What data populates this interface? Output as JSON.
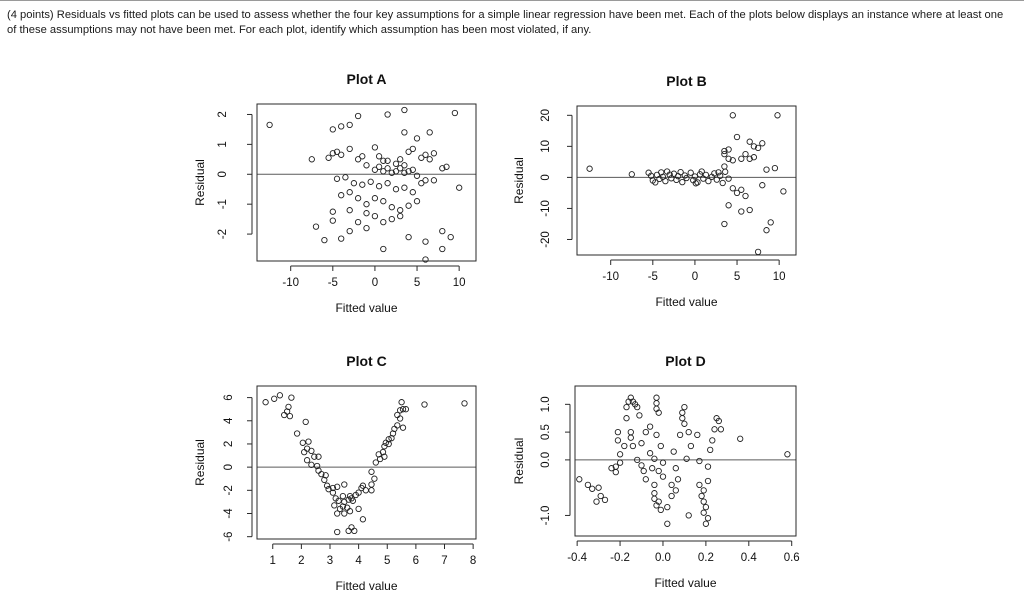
{
  "question": {
    "line1": "(4 points) Residuals vs fitted plots can be used to assess whether the four key assumptions for a simple linear regression have been met. Each of the plots below displays an instance where at least one",
    "line2": "of these assumptions may not have been met. For each plot, identify which assumption has been most violated, if any."
  },
  "chart_data": [
    {
      "type": "scatter",
      "title": "Plot A",
      "xlabel": "Fitted value",
      "ylabel": "Residual",
      "xlim": [
        -14,
        12
      ],
      "ylim": [
        -2.9,
        2.35
      ],
      "xticks": [
        -10,
        -5,
        0,
        5,
        10
      ],
      "xtick_labels": [
        "-10",
        "-5",
        "0",
        "5",
        "10"
      ],
      "yticks": [
        -2,
        -1,
        0,
        1,
        2
      ],
      "ytick_labels": [
        "-2",
        "-1",
        "0",
        "1",
        "2"
      ],
      "hline": 0,
      "points": [
        [
          -12.5,
          1.65
        ],
        [
          -7.5,
          0.5
        ],
        [
          -5,
          1.5
        ],
        [
          -4,
          1.6
        ],
        [
          -3,
          1.65
        ],
        [
          -2,
          1.95
        ],
        [
          0,
          0.9
        ],
        [
          1.5,
          2
        ],
        [
          3.5,
          1.4
        ],
        [
          5,
          1.2
        ],
        [
          6.5,
          1.4
        ],
        [
          3.5,
          2.15
        ],
        [
          9.5,
          2.05
        ],
        [
          -5,
          0.7
        ],
        [
          -5.5,
          0.55
        ],
        [
          -4,
          0.65
        ],
        [
          -3,
          0.85
        ],
        [
          -2,
          0.5
        ],
        [
          -1.5,
          0.6
        ],
        [
          0.5,
          0.6
        ],
        [
          1,
          0.45
        ],
        [
          1.5,
          0.45
        ],
        [
          2.5,
          0.35
        ],
        [
          3,
          0.5
        ],
        [
          3.5,
          0.3
        ],
        [
          4,
          0.75
        ],
        [
          4.5,
          0.85
        ],
        [
          5.5,
          0.55
        ],
        [
          6,
          0.65
        ],
        [
          6.5,
          0.5
        ],
        [
          7,
          0.7
        ],
        [
          8,
          0.2
        ],
        [
          8.5,
          0.25
        ],
        [
          -1,
          0.3
        ],
        [
          0,
          0.15
        ],
        [
          0.5,
          0.25
        ],
        [
          1,
          0.1
        ],
        [
          1.5,
          0.2
        ],
        [
          2,
          0.05
        ],
        [
          2.5,
          0.1
        ],
        [
          3,
          0.2
        ],
        [
          3.5,
          0.05
        ],
        [
          4,
          0.1
        ],
        [
          4.5,
          0.15
        ],
        [
          5,
          -0.05
        ],
        [
          6,
          -0.2
        ],
        [
          -4.5,
          -0.15
        ],
        [
          -3.5,
          -0.1
        ],
        [
          -2.5,
          -0.3
        ],
        [
          -1.5,
          -0.35
        ],
        [
          -0.5,
          -0.25
        ],
        [
          0.5,
          -0.4
        ],
        [
          1.5,
          -0.3
        ],
        [
          2.5,
          -0.5
        ],
        [
          3.5,
          -0.45
        ],
        [
          4.5,
          -0.6
        ],
        [
          5.5,
          -0.3
        ],
        [
          7,
          -0.2
        ],
        [
          10,
          -0.45
        ],
        [
          -4,
          -0.7
        ],
        [
          -3,
          -0.6
        ],
        [
          -2,
          -0.8
        ],
        [
          -1,
          -1.0
        ],
        [
          0,
          -0.8
        ],
        [
          1,
          -0.9
        ],
        [
          2,
          -1.1
        ],
        [
          3,
          -1.2
        ],
        [
          4,
          -1.05
        ],
        [
          5,
          -0.9
        ],
        [
          -5,
          -1.25
        ],
        [
          -3,
          -1.2
        ],
        [
          -1,
          -1.3
        ],
        [
          0,
          -1.4
        ],
        [
          2,
          -1.5
        ],
        [
          3,
          -1.4
        ],
        [
          -7,
          -1.75
        ],
        [
          -5,
          -1.55
        ],
        [
          -3,
          -1.9
        ],
        [
          -2,
          -1.6
        ],
        [
          -1,
          -1.8
        ],
        [
          1,
          -1.6
        ],
        [
          -6,
          -2.2
        ],
        [
          -4,
          -2.15
        ],
        [
          1,
          -2.5
        ],
        [
          4,
          -2.1
        ],
        [
          6,
          -2.25
        ],
        [
          8,
          -1.9
        ],
        [
          8,
          -2.5
        ],
        [
          9,
          -2.1
        ],
        [
          6,
          -2.85
        ],
        [
          -4.5,
          0.75
        ]
      ]
    },
    {
      "type": "scatter",
      "title": "Plot B",
      "xlabel": "Fitted value",
      "ylabel": "Residual",
      "xlim": [
        -14,
        12
      ],
      "ylim": [
        -25,
        23
      ],
      "xticks": [
        -10,
        -5,
        0,
        5,
        10
      ],
      "xtick_labels": [
        "-10",
        "-5",
        "0",
        "5",
        "10"
      ],
      "yticks": [
        -20,
        -10,
        0,
        10,
        20
      ],
      "ytick_labels": [
        "-20",
        "-10",
        "0",
        "10",
        "20"
      ],
      "hline": 0,
      "points": [
        [
          -12.5,
          2.8
        ],
        [
          -7.5,
          1.0
        ],
        [
          -5.5,
          1.5
        ],
        [
          -5.2,
          0.5
        ],
        [
          -5,
          -1
        ],
        [
          -4.5,
          0.8
        ],
        [
          -4.2,
          -0.5
        ],
        [
          -4,
          1.6
        ],
        [
          -3.8,
          0.2
        ],
        [
          -3.5,
          -1.2
        ],
        [
          -3,
          0.9
        ],
        [
          -2.8,
          -0.3
        ],
        [
          -2.5,
          1.2
        ],
        [
          -2.2,
          -0.8
        ],
        [
          -2,
          0.4
        ],
        [
          -1.5,
          -1.5
        ],
        [
          -1.2,
          0.6
        ],
        [
          -1,
          -0.2
        ],
        [
          -0.5,
          1.5
        ],
        [
          -0.2,
          -0.9
        ],
        [
          0,
          0.3
        ],
        [
          0.3,
          -1.6
        ],
        [
          0.6,
          1.0
        ],
        [
          1,
          -0.4
        ],
        [
          1.3,
          0.8
        ],
        [
          1.6,
          -1.2
        ],
        [
          2,
          0.2
        ],
        [
          2.3,
          1.3
        ],
        [
          2.6,
          -0.7
        ],
        [
          3,
          0.5
        ],
        [
          3.3,
          -1.8
        ],
        [
          3.6,
          1.8
        ],
        [
          4,
          -0.4
        ],
        [
          -3.3,
          1.9
        ],
        [
          -1.7,
          1.7
        ],
        [
          0.8,
          1.9
        ],
        [
          2.8,
          1.6
        ],
        [
          -4.7,
          -1.6
        ],
        [
          0.1,
          -1.9
        ],
        [
          3.5,
          3.5
        ],
        [
          4,
          6
        ],
        [
          4.5,
          5.5
        ],
        [
          3.5,
          8.5
        ],
        [
          4,
          9
        ],
        [
          5,
          13
        ],
        [
          5.5,
          6
        ],
        [
          6,
          7.5
        ],
        [
          6.5,
          11.5
        ],
        [
          7,
          10
        ],
        [
          7.5,
          9.5
        ],
        [
          8,
          11
        ],
        [
          6.5,
          6
        ],
        [
          7,
          6.5
        ],
        [
          8.5,
          2.5
        ],
        [
          9.5,
          3
        ],
        [
          3.5,
          7.5
        ],
        [
          4.5,
          20
        ],
        [
          9.8,
          20
        ],
        [
          4.5,
          -3.5
        ],
        [
          5,
          -5
        ],
        [
          5.5,
          -4
        ],
        [
          6,
          -6
        ],
        [
          4,
          -9
        ],
        [
          3.5,
          -15
        ],
        [
          5.5,
          -11
        ],
        [
          6.5,
          -10.5
        ],
        [
          8,
          -2.5
        ],
        [
          10.5,
          -4.5
        ],
        [
          9,
          -14.5
        ],
        [
          8.5,
          -17
        ],
        [
          7.5,
          -24
        ]
      ]
    },
    {
      "type": "scatter",
      "title": "Plot C",
      "xlabel": "Fitted value",
      "ylabel": "Residual",
      "xlim": [
        0.45,
        8.1
      ],
      "ylim": [
        -6.2,
        7
      ],
      "xticks": [
        1,
        2,
        3,
        4,
        5,
        6,
        7,
        8
      ],
      "xtick_labels": [
        "1",
        "2",
        "3",
        "4",
        "5",
        "6",
        "7",
        "8"
      ],
      "yticks": [
        -6,
        -4,
        -2,
        0,
        2,
        4,
        6
      ],
      "ytick_labels": [
        "-6",
        "-4",
        "-2",
        "0",
        "2",
        "4",
        "6"
      ],
      "hline": 0,
      "points": [
        [
          0.75,
          5.6
        ],
        [
          1.05,
          5.9
        ],
        [
          1.25,
          6.2
        ],
        [
          1.65,
          6
        ],
        [
          1.55,
          5.2
        ],
        [
          1.5,
          4.8
        ],
        [
          1.4,
          4.5
        ],
        [
          1.6,
          4.4
        ],
        [
          2.15,
          3.9
        ],
        [
          1.85,
          2.9
        ],
        [
          2.05,
          2.1
        ],
        [
          2.2,
          1.6
        ],
        [
          2.25,
          2.2
        ],
        [
          2.35,
          1.4
        ],
        [
          2.1,
          1.3
        ],
        [
          2.45,
          0.9
        ],
        [
          2.6,
          0.9
        ],
        [
          2.2,
          0.6
        ],
        [
          2.55,
          0.1
        ],
        [
          2.35,
          0.2
        ],
        [
          2.6,
          -0.3
        ],
        [
          2.7,
          -0.6
        ],
        [
          2.85,
          -0.7
        ],
        [
          2.8,
          -1.1
        ],
        [
          2.9,
          -1.6
        ],
        [
          3.1,
          -1.8
        ],
        [
          3.25,
          -1.7
        ],
        [
          3.5,
          -1.5
        ],
        [
          2.95,
          -1.9
        ],
        [
          3.1,
          -2.2
        ],
        [
          3.2,
          -2.7
        ],
        [
          3.3,
          -2.9
        ],
        [
          3.45,
          -2.5
        ],
        [
          3.5,
          -3.0
        ],
        [
          3.65,
          -2.8
        ],
        [
          3.75,
          -2.7
        ],
        [
          3.8,
          -2.9
        ],
        [
          3.7,
          -2.5
        ],
        [
          3.9,
          -2.4
        ],
        [
          4.0,
          -2.2
        ],
        [
          4.1,
          -1.8
        ],
        [
          4.25,
          -2.0
        ],
        [
          4.15,
          -1.6
        ],
        [
          4.45,
          -2.0
        ],
        [
          3.15,
          -3.3
        ],
        [
          3.35,
          -3.6
        ],
        [
          3.6,
          -3.5
        ],
        [
          3.25,
          -4.0
        ],
        [
          3.5,
          -4.0
        ],
        [
          3.7,
          -3.8
        ],
        [
          3.45,
          -3.4
        ],
        [
          4.0,
          -3.6
        ],
        [
          4.15,
          -4.5
        ],
        [
          3.75,
          -5.2
        ],
        [
          3.65,
          -5.5
        ],
        [
          3.25,
          -5.6
        ],
        [
          3.85,
          -5.5
        ],
        [
          4.45,
          -1.5
        ],
        [
          4.55,
          -1.0
        ],
        [
          4.45,
          -0.4
        ],
        [
          4.6,
          0.4
        ],
        [
          4.7,
          1.1
        ],
        [
          4.9,
          0.9
        ],
        [
          4.75,
          0.7
        ],
        [
          4.85,
          1.3
        ],
        [
          4.95,
          2.1
        ],
        [
          5.05,
          2.4
        ],
        [
          5.15,
          2.5
        ],
        [
          5.2,
          2.9
        ],
        [
          5.25,
          3.3
        ],
        [
          5.35,
          3.6
        ],
        [
          5.45,
          4.2
        ],
        [
          5.55,
          3.4
        ],
        [
          5.35,
          4.5
        ],
        [
          5.45,
          4.9
        ],
        [
          5.55,
          5.0
        ],
        [
          5.65,
          5.0
        ],
        [
          5.5,
          5.6
        ],
        [
          6.3,
          5.4
        ],
        [
          7.7,
          5.5
        ],
        [
          5.05,
          2.0
        ],
        [
          4.9,
          1.8
        ]
      ]
    },
    {
      "type": "scatter",
      "title": "Plot D",
      "xlabel": "Fitted value",
      "ylabel": "Residual",
      "xlim": [
        -0.41,
        0.62
      ],
      "ylim": [
        -1.37,
        1.33
      ],
      "xticks": [
        -0.4,
        -0.2,
        0.0,
        0.2,
        0.4,
        0.6
      ],
      "xtick_labels": [
        "-0.4",
        "-0.2",
        "0.0",
        "0.2",
        "0.4",
        "0.6"
      ],
      "yticks": [
        -1.0,
        0.0,
        0.5,
        1.0
      ],
      "ytick_labels": [
        "-1.0",
        "0.0",
        "0.5",
        "1.0"
      ],
      "hline": 0,
      "points": [
        [
          -0.39,
          -0.35
        ],
        [
          -0.35,
          -0.45
        ],
        [
          -0.33,
          -0.52
        ],
        [
          -0.31,
          -0.75
        ],
        [
          -0.29,
          -0.65
        ],
        [
          -0.3,
          -0.5
        ],
        [
          -0.27,
          -0.72
        ],
        [
          -0.24,
          -0.15
        ],
        [
          -0.22,
          -0.22
        ],
        [
          -0.22,
          -0.12
        ],
        [
          -0.2,
          -0.05
        ],
        [
          -0.2,
          0.1
        ],
        [
          -0.21,
          0.35
        ],
        [
          -0.21,
          0.5
        ],
        [
          -0.18,
          0.25
        ],
        [
          -0.17,
          0.75
        ],
        [
          -0.17,
          0.95
        ],
        [
          -0.16,
          1.05
        ],
        [
          -0.15,
          1.12
        ],
        [
          -0.14,
          1.05
        ],
        [
          -0.13,
          1.0
        ],
        [
          -0.12,
          0.95
        ],
        [
          -0.11,
          0.8
        ],
        [
          -0.15,
          0.4
        ],
        [
          -0.15,
          0.5
        ],
        [
          -0.14,
          0.25
        ],
        [
          -0.12,
          0.0
        ],
        [
          -0.1,
          -0.1
        ],
        [
          -0.09,
          -0.2
        ],
        [
          -0.08,
          -0.35
        ],
        [
          -0.1,
          0.3
        ],
        [
          -0.08,
          0.5
        ],
        [
          -0.06,
          0.6
        ],
        [
          -0.06,
          0.12
        ],
        [
          -0.05,
          -0.15
        ],
        [
          -0.04,
          0.02
        ],
        [
          -0.03,
          0.45
        ],
        [
          -0.03,
          1.12
        ],
        [
          -0.03,
          1.02
        ],
        [
          -0.03,
          0.92
        ],
        [
          -0.02,
          0.85
        ],
        [
          -0.01,
          0.25
        ],
        [
          0.0,
          -0.05
        ],
        [
          -0.02,
          -0.2
        ],
        [
          0.0,
          -0.3
        ],
        [
          -0.04,
          -0.45
        ],
        [
          -0.04,
          -0.6
        ],
        [
          -0.04,
          -0.7
        ],
        [
          -0.02,
          -0.75
        ],
        [
          -0.03,
          -0.82
        ],
        [
          -0.01,
          -0.9
        ],
        [
          0.02,
          -0.85
        ],
        [
          0.02,
          -1.15
        ],
        [
          0.04,
          -0.65
        ],
        [
          0.06,
          -0.55
        ],
        [
          0.04,
          -0.45
        ],
        [
          0.07,
          -0.35
        ],
        [
          0.05,
          0.15
        ],
        [
          0.06,
          -0.15
        ],
        [
          0.08,
          0.45
        ],
        [
          0.09,
          0.85
        ],
        [
          0.09,
          0.75
        ],
        [
          0.1,
          0.95
        ],
        [
          0.1,
          0.65
        ],
        [
          0.11,
          0.02
        ],
        [
          0.12,
          0.5
        ],
        [
          0.13,
          0.25
        ],
        [
          0.16,
          0.45
        ],
        [
          0.17,
          -0.02
        ],
        [
          0.17,
          -0.45
        ],
        [
          0.19,
          -0.55
        ],
        [
          0.18,
          -0.65
        ],
        [
          0.19,
          -0.75
        ],
        [
          0.2,
          -0.85
        ],
        [
          0.19,
          -0.95
        ],
        [
          0.21,
          -0.38
        ],
        [
          0.21,
          -0.12
        ],
        [
          0.22,
          0.18
        ],
        [
          0.23,
          0.35
        ],
        [
          0.24,
          0.55
        ],
        [
          0.25,
          0.75
        ],
        [
          0.26,
          0.7
        ],
        [
          0.27,
          0.55
        ],
        [
          0.36,
          0.38
        ],
        [
          0.58,
          0.1
        ],
        [
          0.21,
          -1.05
        ],
        [
          0.2,
          -1.15
        ],
        [
          0.12,
          -1.0
        ]
      ]
    }
  ]
}
